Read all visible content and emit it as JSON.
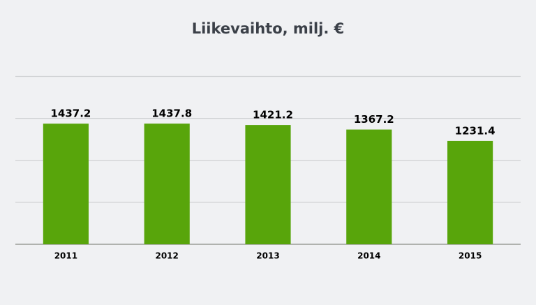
{
  "chart_data": {
    "type": "bar",
    "title": "Liikevaihto, milj. €",
    "categories": [
      "2011",
      "2012",
      "2013",
      "2014",
      "2015"
    ],
    "values": [
      1437.2,
      1437.8,
      1421.2,
      1367.2,
      1231.4
    ],
    "color": "#58a50b",
    "ylim": [
      0,
      2000
    ],
    "yticks": [
      0,
      500,
      1000,
      1500,
      2000
    ],
    "grid": true
  }
}
